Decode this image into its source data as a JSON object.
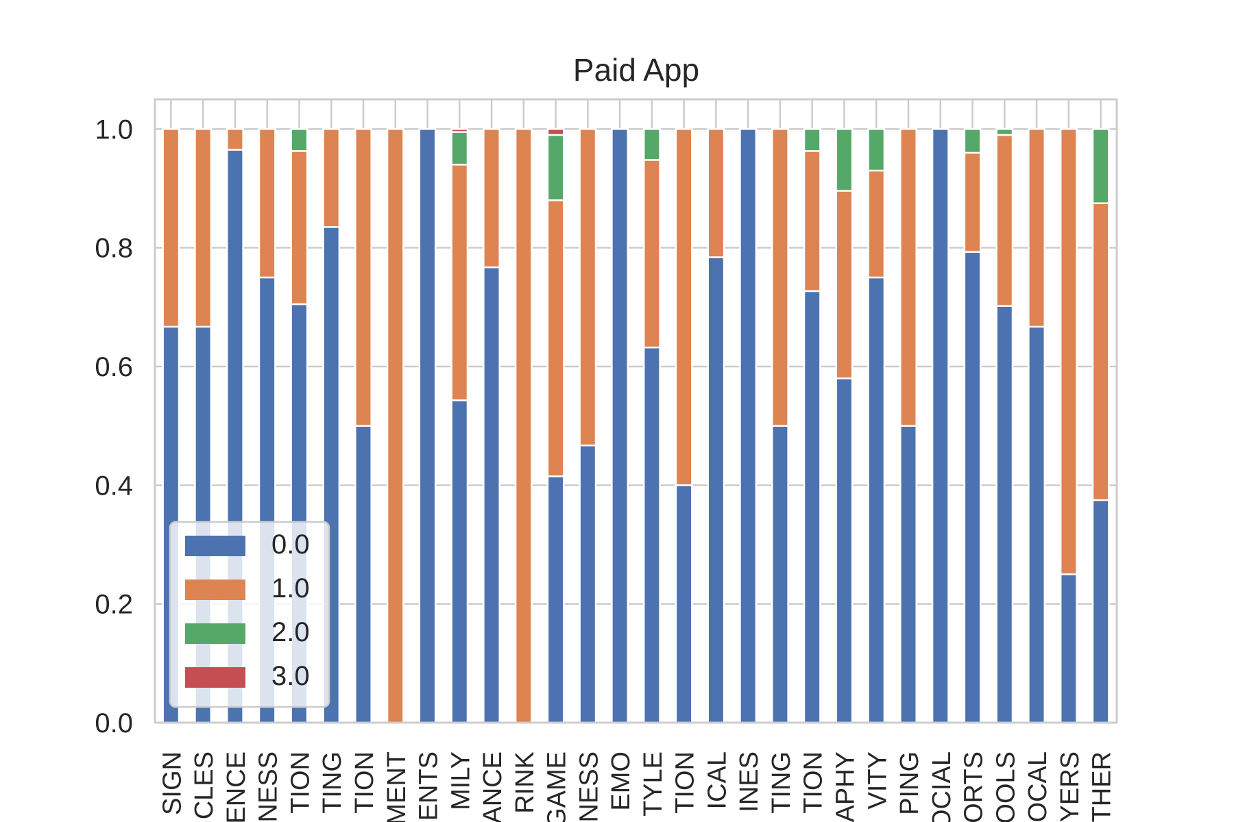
{
  "chart_data": {
    "type": "bar",
    "stacked": true,
    "title": "Paid App",
    "xlabel": "",
    "ylabel": "",
    "ylim": [
      0,
      1.05
    ],
    "yticks": [
      "0.0",
      "0.2",
      "0.4",
      "0.6",
      "0.8",
      "1.0"
    ],
    "grid": true,
    "legend_position": "lower-left",
    "categories": [
      "SIGN",
      "CLES",
      "ENCE",
      "NESS",
      "TION",
      "TING",
      "TION",
      "MENT",
      "ENTS",
      "MILY",
      "ANCE",
      "RINK",
      "GAME",
      "NESS",
      "EMO",
      "TYLE",
      "TION",
      "ICAL",
      "INES",
      "TING",
      "TION",
      "APHY",
      "VITY",
      "PING",
      "OCIAL",
      "ORTS",
      "OOLS",
      "OCAL",
      "YERS",
      "THER"
    ],
    "series": [
      {
        "name": "0.0",
        "color": "#4C72B0",
        "values": [
          0.667,
          0.667,
          0.965,
          0.75,
          0.705,
          0.835,
          0.5,
          0.0,
          1.0,
          0.543,
          0.767,
          0.0,
          0.415,
          0.467,
          1.0,
          0.632,
          0.4,
          0.784,
          1.0,
          0.5,
          0.727,
          0.58,
          0.75,
          0.5,
          1.0,
          0.793,
          0.702,
          0.667,
          0.25,
          0.375
        ]
      },
      {
        "name": "1.0",
        "color": "#DD8452",
        "values": [
          0.333,
          0.333,
          0.035,
          0.25,
          0.258,
          0.165,
          0.5,
          1.0,
          0.0,
          0.397,
          0.233,
          1.0,
          0.465,
          0.533,
          0.0,
          0.316,
          0.6,
          0.216,
          0.0,
          0.5,
          0.236,
          0.316,
          0.18,
          0.5,
          0.0,
          0.167,
          0.288,
          0.333,
          0.75,
          0.5
        ]
      },
      {
        "name": "2.0",
        "color": "#55A868",
        "values": [
          0.0,
          0.0,
          0.0,
          0.0,
          0.037,
          0.0,
          0.0,
          0.0,
          0.0,
          0.055,
          0.0,
          0.0,
          0.11,
          0.0,
          0.0,
          0.052,
          0.0,
          0.0,
          0.0,
          0.0,
          0.037,
          0.104,
          0.07,
          0.0,
          0.0,
          0.04,
          0.01,
          0.0,
          0.0,
          0.125
        ]
      },
      {
        "name": "3.0",
        "color": "#C44E52",
        "values": [
          0.0,
          0.0,
          0.0,
          0.0,
          0.0,
          0.0,
          0.0,
          0.0,
          0.0,
          0.005,
          0.0,
          0.0,
          0.01,
          0.0,
          0.0,
          0.0,
          0.0,
          0.0,
          0.0,
          0.0,
          0.0,
          0.0,
          0.0,
          0.0,
          0.0,
          0.0,
          0.0,
          0.0,
          0.0,
          0.0
        ]
      }
    ],
    "colors": {
      "grid": "#cccccc",
      "spine": "#cccccc",
      "text": "#262626",
      "legend_frame": "#cccccc"
    }
  }
}
